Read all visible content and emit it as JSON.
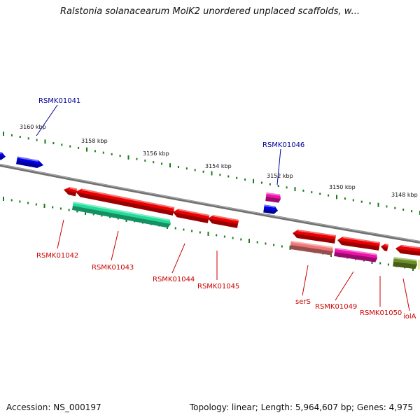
{
  "title": "Ralstonia solanacearum MolK2 unordered unplaced scaffolds, w...",
  "footer": {
    "accession": "Accession: NS_000197",
    "topology": "Topology: linear; Length: 5,964,607 bp; Genes: 4,975"
  },
  "colors": {
    "backbone": "#808080",
    "tick": "#1a7a1a",
    "forward_label": "#00009c",
    "reverse_label": "#cc0000",
    "red_gene": "#ee0000",
    "blue_gene": "#0000ee",
    "green_gene": "#22dd99",
    "pink_gene": "#ee7777",
    "magenta_gene": "#ee11aa",
    "olive_gene": "#6b8e23"
  },
  "ticks": [
    {
      "label": "3160 kbp"
    },
    {
      "label": "3158 kbp"
    },
    {
      "label": "3156 kbp"
    },
    {
      "label": "3154 kbp"
    },
    {
      "label": "3152 kbp"
    },
    {
      "label": "3150 kbp"
    },
    {
      "label": "3148 kbp"
    }
  ],
  "genes": [
    {
      "label": "RSMK01041",
      "strand": "forward",
      "color": "blue_gene"
    },
    {
      "label": "RSMK01046",
      "strand": "forward",
      "color": "pink_gene"
    },
    {
      "label": "RSMK01042",
      "strand": "reverse",
      "color": "red_gene"
    },
    {
      "label": "RSMK01043",
      "strand": "reverse",
      "color": "green_gene"
    },
    {
      "label": "RSMK01044",
      "strand": "reverse",
      "color": "red_gene"
    },
    {
      "label": "RSMK01045",
      "strand": "reverse",
      "color": "red_gene"
    },
    {
      "label": "serS",
      "strand": "reverse",
      "color": "pink_gene"
    },
    {
      "label": "RSMK01049",
      "strand": "reverse",
      "color": "magenta_gene"
    },
    {
      "label": "RSMK01050",
      "strand": "reverse",
      "color": "red_gene"
    },
    {
      "label": "iolA",
      "strand": "reverse",
      "color": "olive_gene"
    }
  ]
}
